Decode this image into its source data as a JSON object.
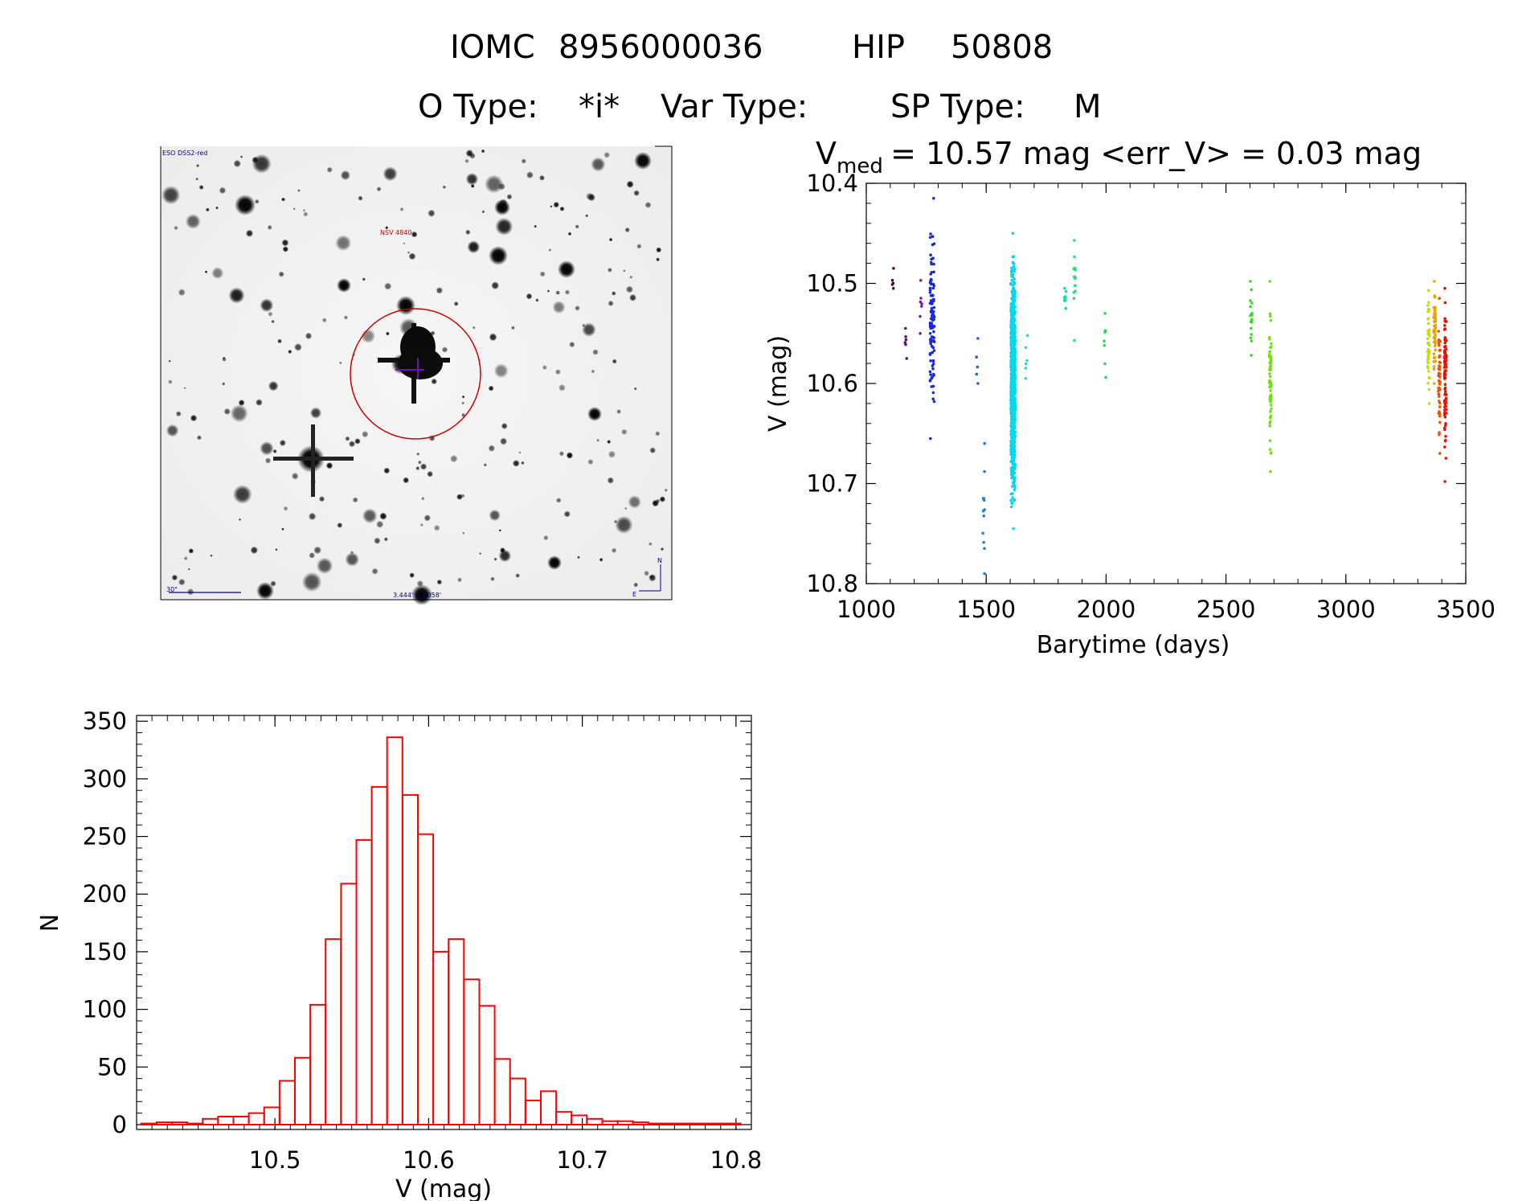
{
  "header": {
    "id_label": "IOMC",
    "iomc_number": "8956000036",
    "hip_label": "HIP",
    "hip_number": "50808",
    "otype_label": "O Type:",
    "otype_value": "*i*",
    "vartype_label": "Var Type:",
    "vartype_value": "",
    "sptype_label": "SP Type:",
    "sptype_value": "M"
  },
  "finder_chart": {
    "survey_label": "ESO DSS2-red",
    "object_label": "NSV 4840",
    "scale_label": "30\"",
    "fov_label": "3.444' x 3.058'",
    "north_label": "N",
    "east_label": "E"
  },
  "colors": {
    "histogram": "#ff0000",
    "axes": "#000000",
    "circle": "#cc0000"
  },
  "chart_data": [
    {
      "type": "scatter",
      "title_main": "V",
      "title_sub": "med",
      "title_rest": " = 10.57 mag <err_V> = 0.03 mag",
      "xlabel": "Barytime (days)",
      "ylabel": "V (mag)",
      "xlim": [
        1000,
        3500
      ],
      "ylim": [
        10.8,
        10.4
      ],
      "xticks": [
        1000,
        1500,
        2000,
        2500,
        3000,
        3500
      ],
      "yticks": [
        10.4,
        10.5,
        10.6,
        10.7,
        10.8
      ],
      "ytick_labels": [
        "10.4",
        "10.5",
        "10.6",
        "10.7",
        "10.8"
      ],
      "groups": [
        {
          "x": 1110,
          "ymin": 10.485,
          "ymax": 10.505,
          "n": 5,
          "color": "#4a0a3a"
        },
        {
          "x": 1165,
          "ymin": 10.545,
          "ymax": 10.575,
          "n": 6,
          "color": "#5a1270"
        },
        {
          "x": 1228,
          "ymin": 10.497,
          "ymax": 10.55,
          "n": 7,
          "color": "#7020a8"
        },
        {
          "x": 1275,
          "ymin": 10.415,
          "ymax": 10.655,
          "n": 110,
          "color": "#1a2ad8"
        },
        {
          "x": 1462,
          "ymin": 10.555,
          "ymax": 10.6,
          "n": 5,
          "color": "#2060e0"
        },
        {
          "x": 1490,
          "ymin": 10.66,
          "ymax": 10.79,
          "n": 12,
          "color": "#1c7ee8"
        },
        {
          "x": 1612,
          "ymin": 10.45,
          "ymax": 10.745,
          "n": 900,
          "color": "#00d8f0"
        },
        {
          "x": 1668,
          "ymin": 10.552,
          "ymax": 10.595,
          "n": 6,
          "color": "#10e8d0"
        },
        {
          "x": 1830,
          "ymin": 10.505,
          "ymax": 10.525,
          "n": 8,
          "color": "#00e890"
        },
        {
          "x": 1868,
          "ymin": 10.457,
          "ymax": 10.557,
          "n": 14,
          "color": "#20e070"
        },
        {
          "x": 1995,
          "ymin": 10.53,
          "ymax": 10.594,
          "n": 8,
          "color": "#20e040"
        },
        {
          "x": 2605,
          "ymin": 10.498,
          "ymax": 10.572,
          "n": 18,
          "color": "#30e020"
        },
        {
          "x": 2685,
          "ymin": 10.498,
          "ymax": 10.688,
          "n": 60,
          "color": "#70e010"
        },
        {
          "x": 3345,
          "ymin": 10.507,
          "ymax": 10.62,
          "n": 45,
          "color": "#c8e000"
        },
        {
          "x": 3370,
          "ymin": 10.498,
          "ymax": 10.6,
          "n": 60,
          "color": "#f0a000"
        },
        {
          "x": 3390,
          "ymin": 10.515,
          "ymax": 10.67,
          "n": 50,
          "color": "#f05000"
        },
        {
          "x": 3415,
          "ymin": 10.505,
          "ymax": 10.698,
          "n": 90,
          "color": "#e81000"
        }
      ]
    },
    {
      "type": "histogram",
      "xlabel": "V (mag)",
      "ylabel": "N",
      "xlim": [
        10.41,
        10.81
      ],
      "ylim": [
        0,
        355
      ],
      "xticks": [
        10.5,
        10.6,
        10.7,
        10.8
      ],
      "xtick_labels": [
        "10.5",
        "10.6",
        "10.7",
        "10.8"
      ],
      "yticks": [
        0,
        50,
        100,
        150,
        200,
        250,
        300,
        350
      ],
      "bin_start": 10.413,
      "bin_width": 0.01,
      "counts": [
        1,
        2,
        2,
        1,
        5,
        7,
        7,
        10,
        15,
        38,
        58,
        104,
        161,
        209,
        247,
        293,
        336,
        286,
        252,
        150,
        161,
        126,
        103,
        57,
        40,
        21,
        29,
        11,
        8,
        5,
        3,
        3,
        2,
        1,
        1,
        1,
        1,
        1,
        1
      ],
      "line_color": "#ff0000"
    }
  ]
}
